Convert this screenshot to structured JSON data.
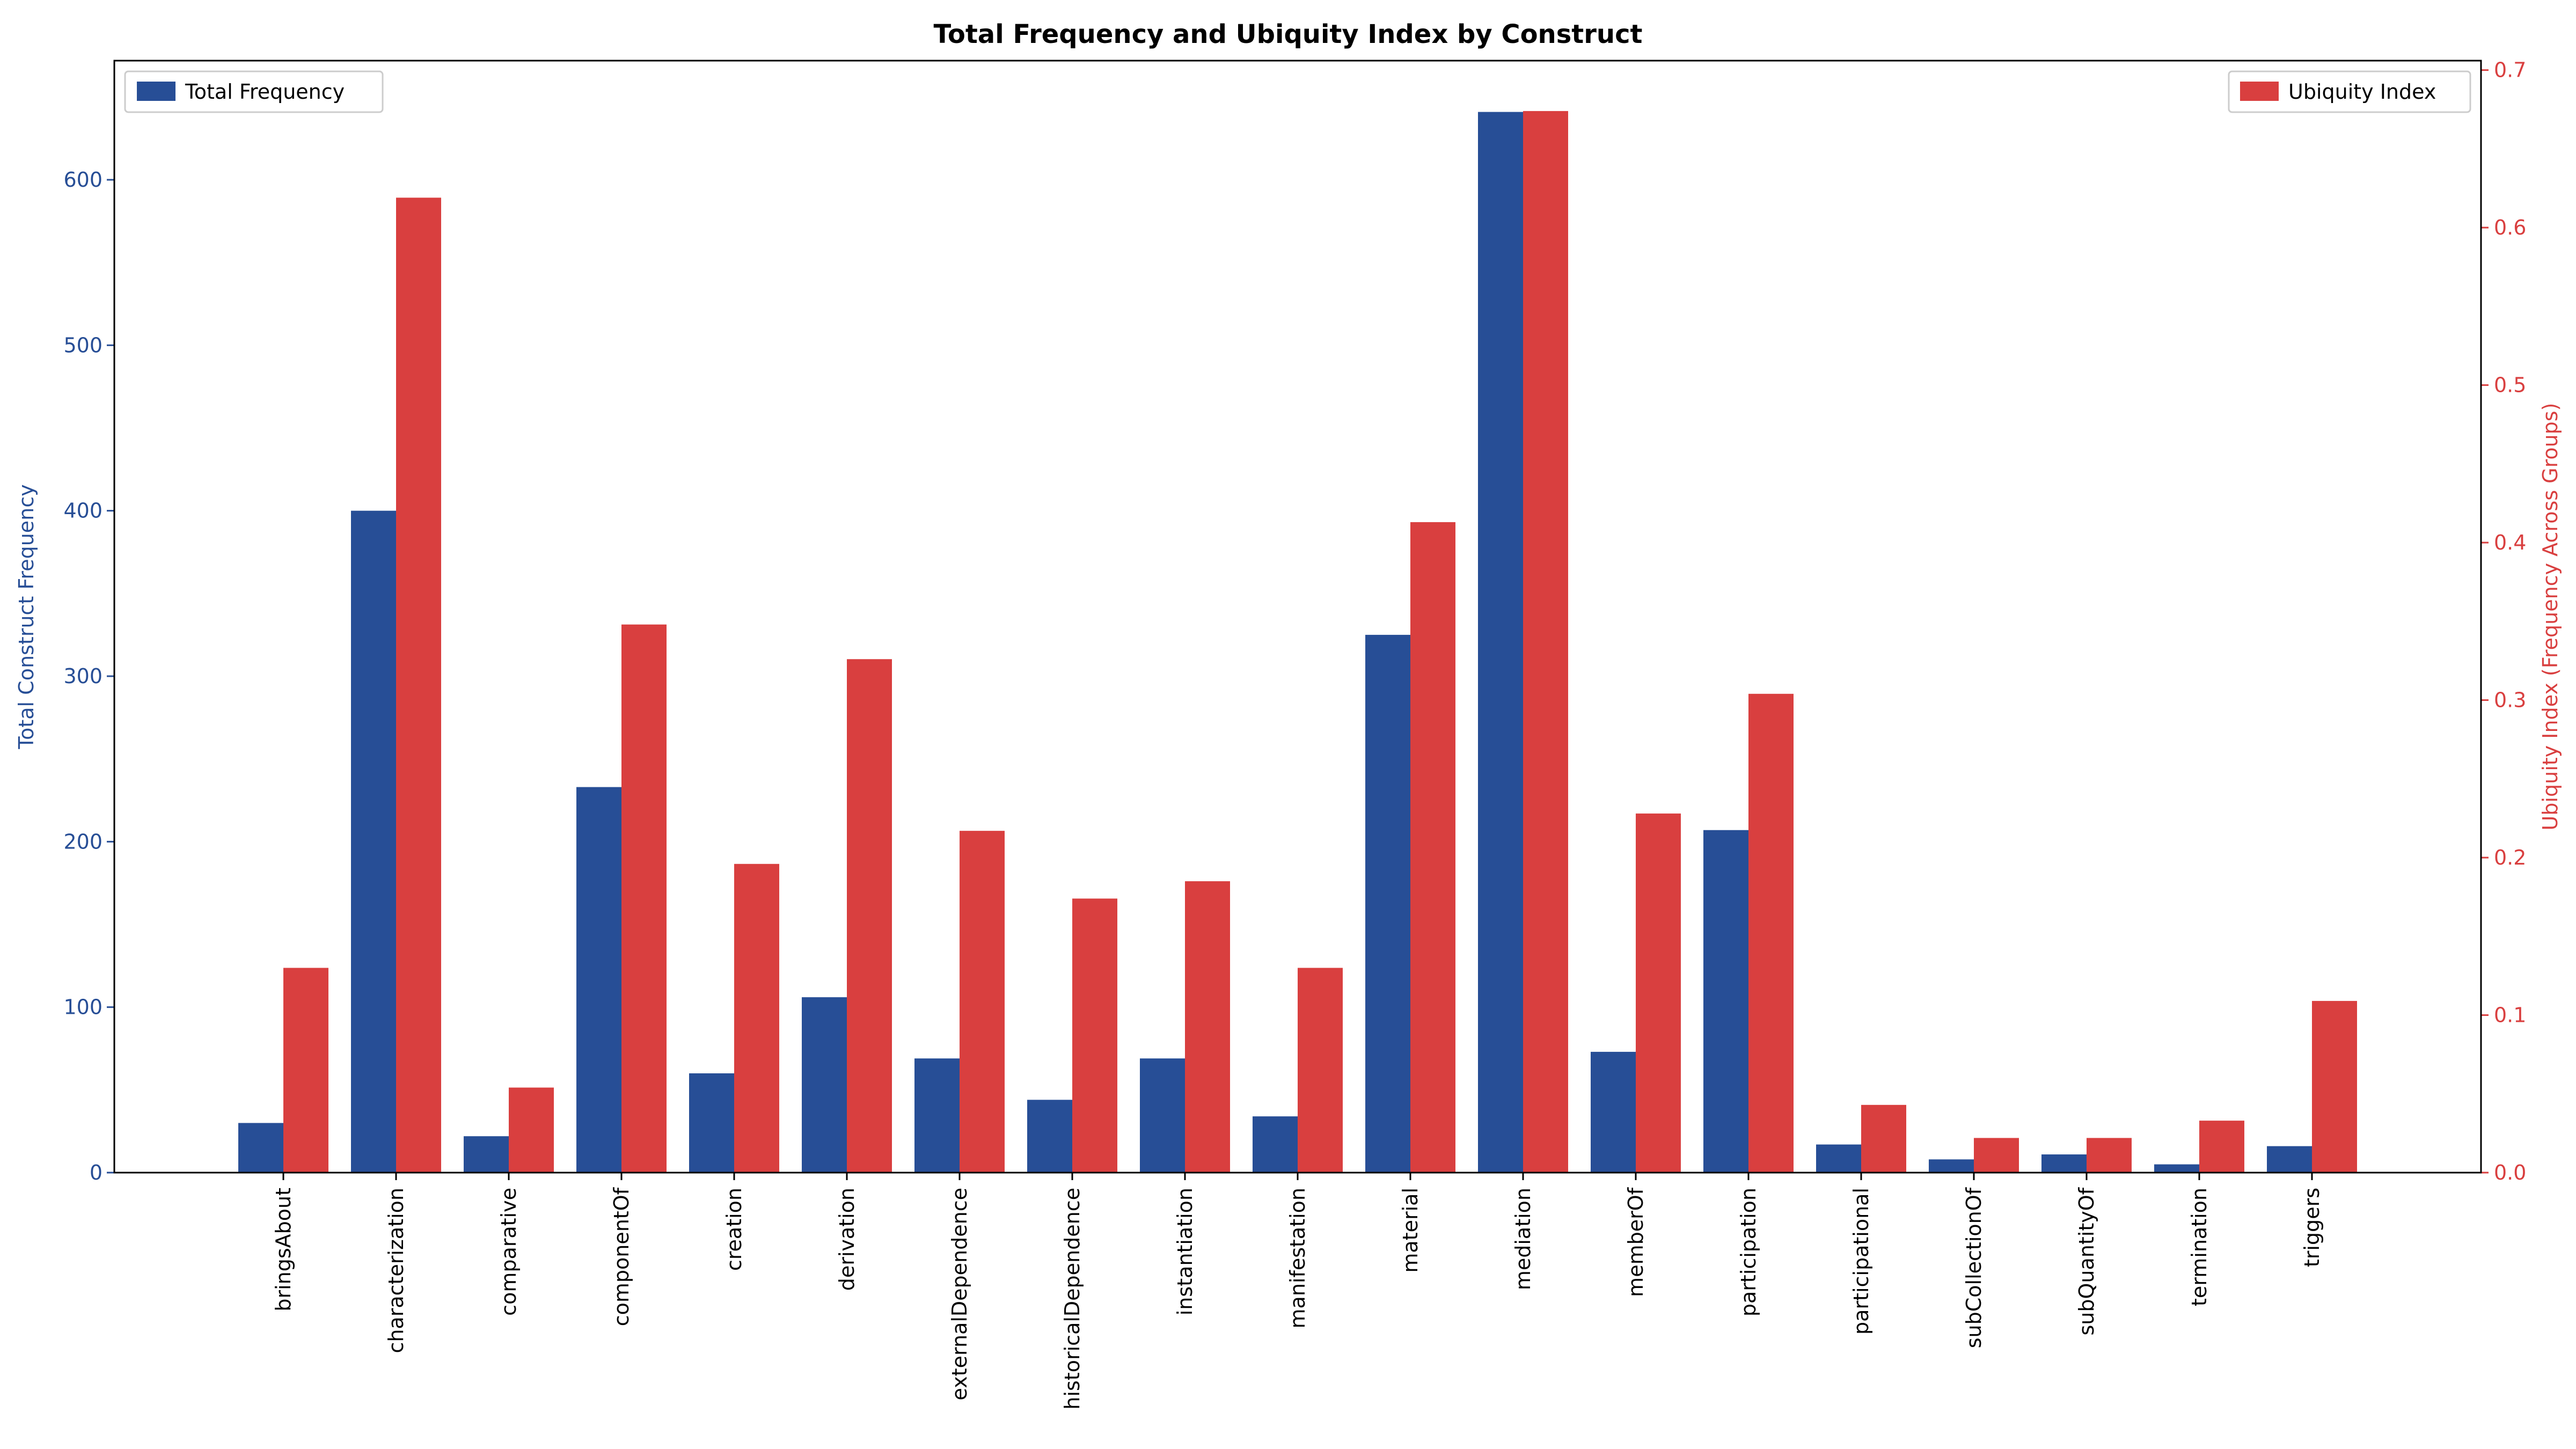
{
  "chart_data": {
    "type": "bar",
    "title": "Total Frequency and Ubiquity Index by Construct",
    "xlabel": "",
    "ylabel": "Total Construct Frequency",
    "y2label": "Ubiquity Index (Frequency Across Groups)",
    "ylim": [
      0,
      672
    ],
    "y2lim": [
      0,
      0.706
    ],
    "yticks": [
      "0",
      "100",
      "200",
      "300",
      "400",
      "500",
      "600"
    ],
    "y2ticks": [
      "0.0",
      "0.1",
      "0.2",
      "0.3",
      "0.4",
      "0.5",
      "0.6",
      "0.7"
    ],
    "categories": [
      "bringsAbout",
      "characterization",
      "comparative",
      "componentOf",
      "creation",
      "derivation",
      "externalDependence",
      "historicalDependence",
      "instantiation",
      "manifestation",
      "material",
      "mediation",
      "memberOf",
      "participation",
      "participational",
      "subCollectionOf",
      "subQuantityOf",
      "termination",
      "triggers"
    ],
    "series": [
      {
        "name": "Total Frequency",
        "axis": "left",
        "color": "#274e96",
        "values": [
          30,
          400,
          22,
          233,
          60,
          106,
          69,
          44,
          69,
          34,
          325,
          641,
          73,
          207,
          17,
          8,
          11,
          5,
          16
        ]
      },
      {
        "name": "Ubiquity Index",
        "axis": "right",
        "color": "#d93f3f",
        "values": [
          0.13,
          0.619,
          0.054,
          0.348,
          0.196,
          0.326,
          0.217,
          0.174,
          0.185,
          0.13,
          0.413,
          0.674,
          0.228,
          0.304,
          0.043,
          0.022,
          0.022,
          0.033,
          0.109
        ]
      }
    ],
    "legend": [
      {
        "position": "top-left",
        "label": "Total Frequency"
      },
      {
        "position": "top-right",
        "label": "Ubiquity Index"
      }
    ],
    "grid": false,
    "colors": {
      "left_axis": "#274e96",
      "right_axis": "#d93f3f"
    }
  }
}
